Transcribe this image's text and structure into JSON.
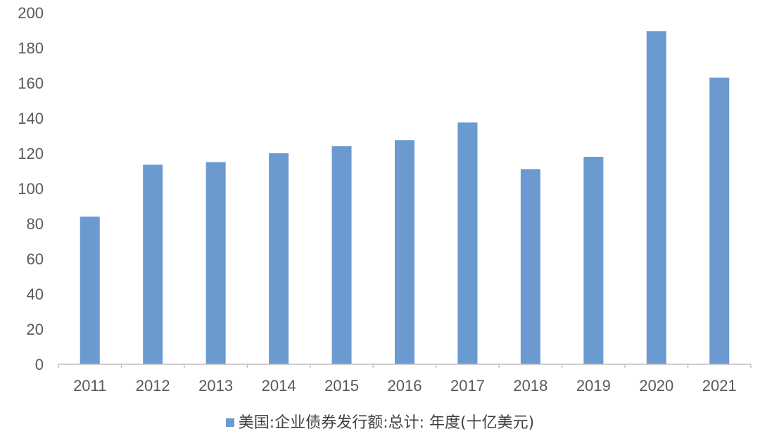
{
  "chart_data": {
    "type": "bar",
    "categories": [
      "2011",
      "2012",
      "2013",
      "2014",
      "2015",
      "2016",
      "2017",
      "2018",
      "2019",
      "2020",
      "2021"
    ],
    "series": [
      {
        "name": "美国:企业债券发行额:总计: 年度(十亿美元)",
        "values": [
          84,
          113.5,
          115,
          120,
          124,
          127.5,
          137.5,
          111,
          118,
          189.5,
          163
        ]
      }
    ],
    "title": "",
    "xlabel": "",
    "ylabel": "",
    "ylim": [
      0,
      200
    ],
    "yticks": [
      0,
      20,
      40,
      60,
      80,
      100,
      120,
      140,
      160,
      180,
      200
    ],
    "grid": false,
    "legend_position": "bottom",
    "bar_color": "#6a9ad0"
  }
}
